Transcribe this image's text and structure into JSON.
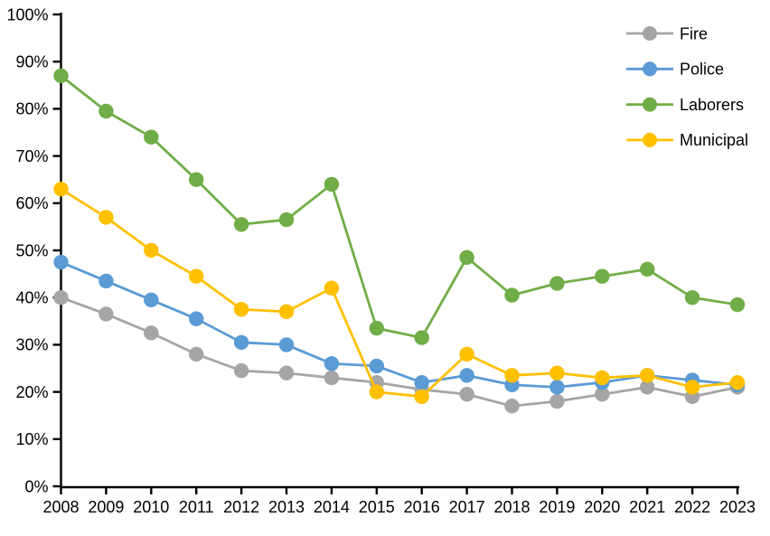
{
  "chart_data": {
    "type": "line",
    "title": "",
    "xlabel": "",
    "ylabel": "",
    "grid": false,
    "legend_position": "top-right",
    "ylim": [
      0,
      100
    ],
    "ytick_step": 10,
    "ytick_labels": [
      "0%",
      "10%",
      "20%",
      "30%",
      "40%",
      "50%",
      "60%",
      "70%",
      "80%",
      "90%",
      "100%"
    ],
    "x": [
      "2008",
      "2009",
      "2010",
      "2011",
      "2012",
      "2013",
      "2014",
      "2015",
      "2016",
      "2017",
      "2018",
      "2019",
      "2020",
      "2021",
      "2022",
      "2023"
    ],
    "series": [
      {
        "name": "Fire",
        "color": "#A5A5A5",
        "values": [
          40,
          36.5,
          32.5,
          28,
          24.5,
          24,
          23,
          22,
          20.5,
          19.5,
          17,
          18,
          19.5,
          21,
          19,
          21
        ]
      },
      {
        "name": "Police",
        "color": "#5B9BD5",
        "values": [
          47.5,
          43.5,
          39.5,
          35.5,
          30.5,
          30,
          26,
          25.5,
          22,
          23.5,
          21.5,
          21,
          22,
          23.5,
          22.5,
          21.5
        ]
      },
      {
        "name": "Laborers",
        "color": "#70AD47",
        "values": [
          87,
          79.5,
          74,
          65,
          55.5,
          56.5,
          64,
          33.5,
          31.5,
          48.5,
          40.5,
          43,
          44.5,
          46,
          40,
          38.5
        ]
      },
      {
        "name": "Municipal",
        "color": "#FFC000",
        "values": [
          63,
          57,
          50,
          44.5,
          37.5,
          37,
          42,
          20,
          19,
          28,
          23.5,
          24,
          23,
          23.5,
          21,
          22
        ]
      }
    ],
    "axis_color": "#000000",
    "text_color": "#000000",
    "background": "#FFFFFF"
  }
}
